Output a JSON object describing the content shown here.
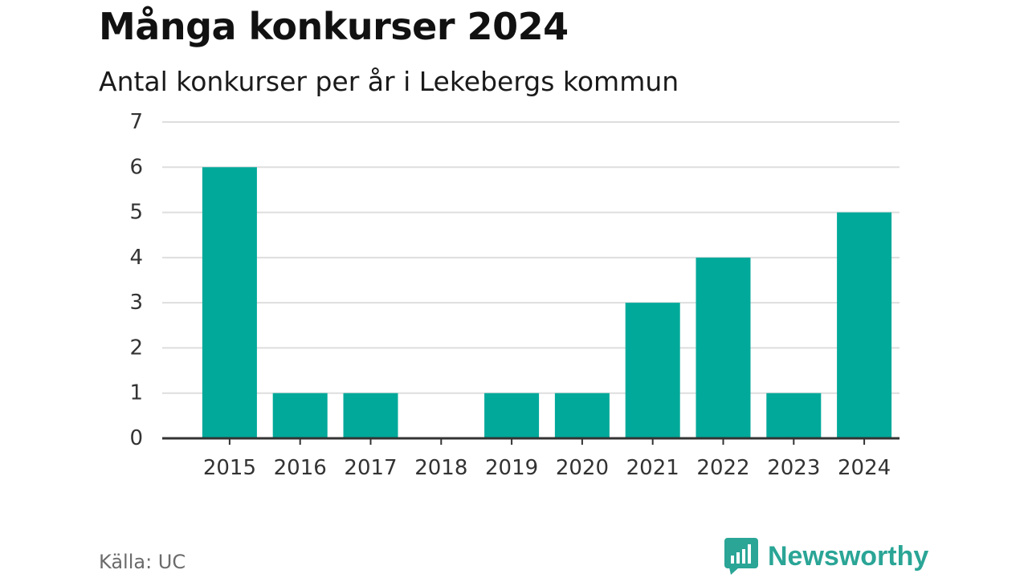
{
  "title": "Många konkurser 2024",
  "subtitle": "Antal konkurser per år i Lekebergs kommun",
  "source": "Källa: UC",
  "brand": {
    "name": "Newsworthy",
    "icon": "newsworthy-logo-icon"
  },
  "colors": {
    "bar": "#00a99a",
    "grid": "#dedede",
    "axis": "#333333",
    "brand": "#2aa596"
  },
  "chart_data": {
    "type": "bar",
    "title": "Många konkurser 2024",
    "subtitle": "Antal konkurser per år i Lekebergs kommun",
    "categories": [
      "2015",
      "2016",
      "2017",
      "2018",
      "2019",
      "2020",
      "2021",
      "2022",
      "2023",
      "2024"
    ],
    "values": [
      6,
      1,
      1,
      0,
      1,
      1,
      3,
      4,
      1,
      5
    ],
    "xlabel": "",
    "ylabel": "",
    "ylim": [
      0,
      7
    ],
    "yticks": [
      "0",
      "1",
      "2",
      "3",
      "4",
      "5",
      "6",
      "7"
    ],
    "grid": true,
    "legend": "none"
  }
}
